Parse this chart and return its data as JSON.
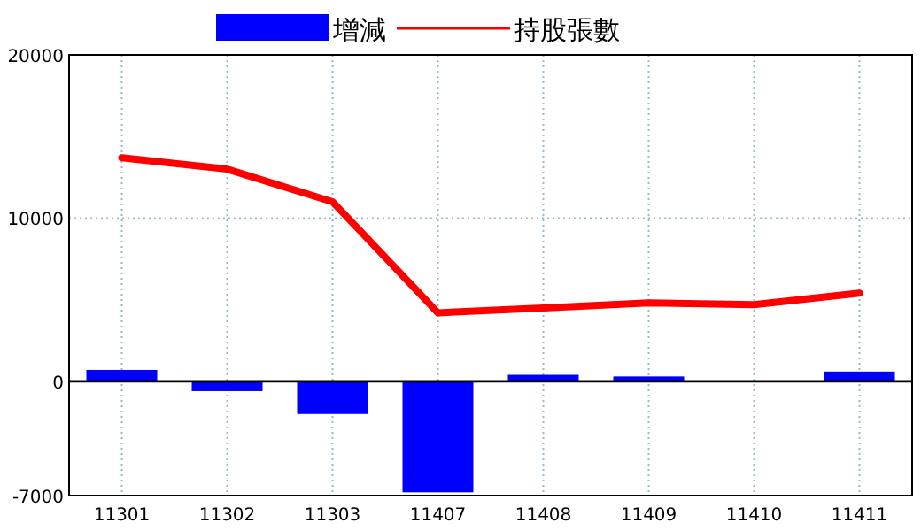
{
  "chart_data": {
    "type": "bar",
    "categories": [
      "11301",
      "11302",
      "11303",
      "11407",
      "11408",
      "11409",
      "11410",
      "11411"
    ],
    "series": [
      {
        "name": "增減",
        "color": "#0000ff",
        "values": [
          700,
          -600,
          -2000,
          -6800,
          400,
          300,
          0,
          600
        ]
      },
      {
        "name": "持股張數",
        "type": "line",
        "color": "#ff0000",
        "values": [
          13700,
          13000,
          11000,
          4200,
          4500,
          4800,
          4700,
          5400
        ]
      }
    ],
    "ylim": [
      -7000,
      20000
    ],
    "yticks": [
      -7000,
      0,
      10000,
      20000
    ],
    "ref_lines": [
      {
        "axis": "y",
        "value": 0,
        "color": "#000000"
      }
    ],
    "grid": true,
    "legend": "top"
  }
}
